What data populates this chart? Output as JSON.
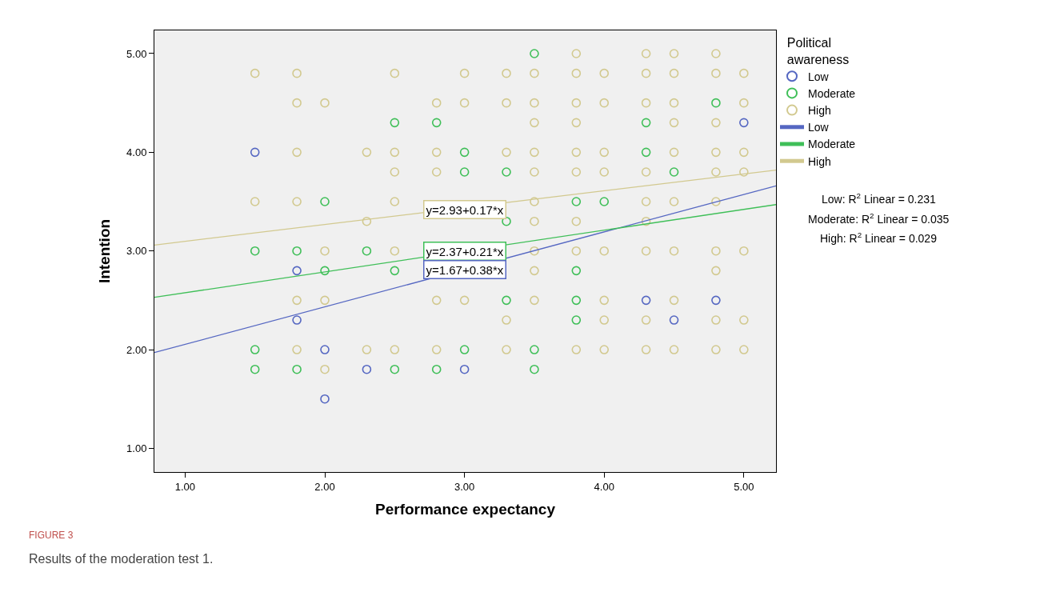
{
  "chart_data": {
    "type": "scatter",
    "xlabel": "Performance expectancy",
    "ylabel": "Intention",
    "legend_title": "Political awareness",
    "xlim": [
      0.78,
      5.23
    ],
    "ylim": [
      0.76,
      5.235
    ],
    "xticks": [
      {
        "value": 1,
        "label": "1.00"
      },
      {
        "value": 2,
        "label": "2.00"
      },
      {
        "value": 3,
        "label": "3.00"
      },
      {
        "value": 4,
        "label": "4.00"
      },
      {
        "value": 5,
        "label": "5.00"
      }
    ],
    "yticks": [
      {
        "value": 1,
        "label": "1.00"
      },
      {
        "value": 2,
        "label": "2.00"
      },
      {
        "value": 3,
        "label": "3.00"
      },
      {
        "value": 4,
        "label": "4.00"
      },
      {
        "value": 5,
        "label": "5.00"
      }
    ],
    "grid": false,
    "legend": "top right",
    "marker": "circle",
    "series": [
      {
        "name": "Low",
        "color": "#5567c2",
        "x": [
          1.5,
          5.0,
          1.8,
          1.8,
          2.0,
          2.3,
          3.0,
          2.0,
          4.3,
          4.8,
          4.5
        ],
        "values": [
          4.0,
          4.3,
          2.8,
          2.3,
          2.0,
          1.8,
          1.8,
          1.5,
          2.5,
          2.5,
          2.3
        ]
      },
      {
        "name": "Moderate",
        "color": "#3fbf58",
        "x": [
          3.5,
          2.5,
          2.8,
          4.3,
          3.0,
          4.3,
          3.0,
          3.3,
          2.0,
          3.8,
          4.0,
          3.3,
          1.5,
          1.8,
          2.3,
          2.0,
          2.5,
          3.8,
          3.3,
          3.8,
          3.8,
          1.5,
          3.0,
          3.5,
          1.5,
          1.8,
          2.5,
          2.8,
          3.5,
          4.8,
          4.5
        ],
        "values": [
          5.0,
          4.3,
          4.3,
          4.3,
          4.0,
          4.0,
          3.8,
          3.8,
          3.5,
          3.5,
          3.5,
          3.3,
          3.0,
          3.0,
          3.0,
          2.8,
          2.8,
          2.8,
          2.5,
          2.5,
          2.3,
          2.0,
          2.0,
          2.0,
          1.8,
          1.8,
          1.8,
          1.8,
          1.8,
          4.5,
          3.8
        ]
      },
      {
        "name": "High",
        "color": "#d2c98f",
        "x": [
          1.5,
          1.8,
          2.5,
          3.0,
          3.3,
          3.5,
          3.8,
          4.0,
          4.3,
          4.5,
          4.8,
          5.0,
          3.8,
          4.3,
          4.5,
          4.8,
          1.8,
          2.0,
          2.8,
          3.0,
          3.3,
          3.5,
          3.8,
          4.0,
          4.3,
          4.5,
          5.0,
          3.5,
          3.8,
          4.5,
          4.8,
          1.8,
          2.3,
          2.5,
          2.8,
          3.3,
          3.5,
          3.8,
          4.0,
          4.5,
          4.8,
          5.0,
          2.5,
          2.8,
          3.5,
          3.8,
          4.0,
          4.3,
          4.8,
          5.0,
          1.5,
          1.8,
          2.5,
          3.5,
          4.3,
          4.5,
          4.8,
          2.3,
          3.5,
          3.8,
          4.3,
          2.0,
          2.5,
          3.5,
          3.8,
          4.0,
          4.3,
          4.5,
          4.8,
          5.0,
          3.5,
          4.8,
          1.8,
          2.0,
          2.8,
          3.0,
          3.5,
          4.0,
          4.5,
          3.3,
          4.0,
          4.3,
          4.8,
          5.0,
          1.8,
          2.3,
          2.5,
          2.8,
          3.3,
          3.8,
          4.0,
          4.3,
          4.5,
          4.8,
          5.0,
          2.0
        ],
        "values": [
          4.8,
          4.8,
          4.8,
          4.8,
          4.8,
          4.8,
          4.8,
          4.8,
          4.8,
          4.8,
          4.8,
          4.8,
          5.0,
          5.0,
          5.0,
          5.0,
          4.5,
          4.5,
          4.5,
          4.5,
          4.5,
          4.5,
          4.5,
          4.5,
          4.5,
          4.5,
          4.5,
          4.3,
          4.3,
          4.3,
          4.3,
          4.0,
          4.0,
          4.0,
          4.0,
          4.0,
          4.0,
          4.0,
          4.0,
          4.0,
          4.0,
          4.0,
          3.8,
          3.8,
          3.8,
          3.8,
          3.8,
          3.8,
          3.8,
          3.8,
          3.5,
          3.5,
          3.5,
          3.5,
          3.5,
          3.5,
          3.5,
          3.3,
          3.3,
          3.3,
          3.3,
          3.0,
          3.0,
          3.0,
          3.0,
          3.0,
          3.0,
          3.0,
          3.0,
          3.0,
          2.8,
          2.8,
          2.5,
          2.5,
          2.5,
          2.5,
          2.5,
          2.5,
          2.5,
          2.3,
          2.3,
          2.3,
          2.3,
          2.3,
          2.0,
          2.0,
          2.0,
          2.0,
          2.0,
          2.0,
          2.0,
          2.0,
          2.0,
          2.0,
          2.0,
          1.8
        ]
      },
      {
        "type": "line",
        "marker": "none",
        "name": "Low",
        "color": "#5567c2",
        "x": [
          0.78,
          5.23
        ],
        "values": [
          1.97,
          3.66
        ]
      },
      {
        "type": "line",
        "marker": "none",
        "name": "Moderate",
        "color": "#3fbf58",
        "x": [
          0.78,
          5.23
        ],
        "values": [
          2.53,
          3.47
        ]
      },
      {
        "type": "line",
        "marker": "none",
        "name": "High",
        "color": "#d2c98f",
        "x": [
          0.78,
          5.23
        ],
        "values": [
          3.06,
          3.82
        ]
      }
    ],
    "annotations": [
      "y=2.93+0.17*x",
      "y=2.37+0.21*x",
      "y=1.67+0.38*x",
      "Low: R$^{2}$ Linear = 0.231",
      "Moderate: R$^{2}$ Linear = 0.035",
      "High: R$^{2}$ Linear = 0.029",
      "FIGURE 3",
      "Results of the moderation test 1."
    ]
  }
}
